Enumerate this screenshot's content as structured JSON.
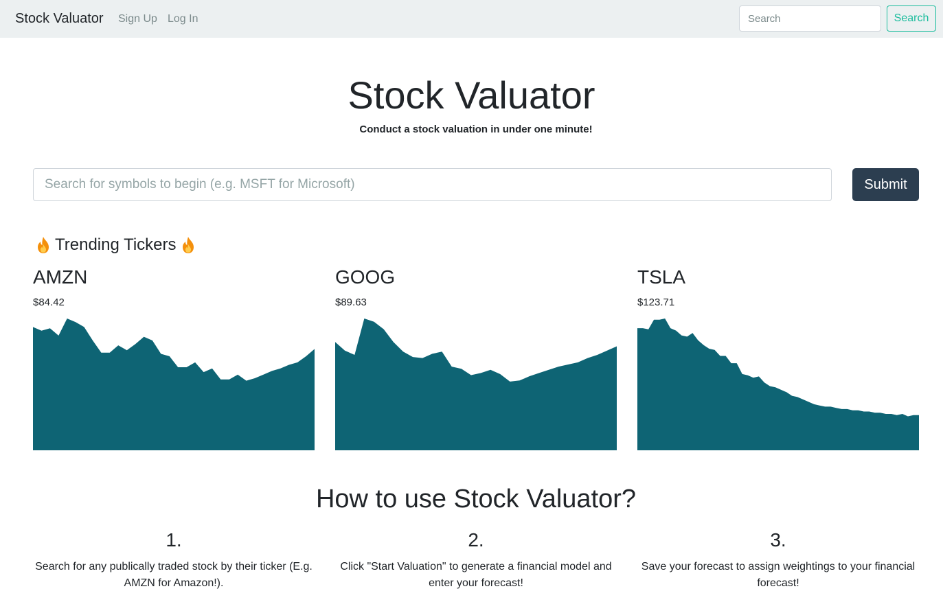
{
  "navbar": {
    "brand": "Stock Valuator",
    "links": [
      "Sign Up",
      "Log In"
    ],
    "search_placeholder": "Search",
    "search_button": "Search"
  },
  "hero": {
    "title": "Stock Valuator",
    "subtitle": "Conduct a stock valuation in under one minute!"
  },
  "main_search": {
    "placeholder": "Search for symbols to begin (e.g. MSFT for Microsoft)",
    "submit_label": "Submit"
  },
  "trending": {
    "heading": "Trending Tickers",
    "icon": "fire-icon"
  },
  "colors": {
    "chart_fill": "#0e6474",
    "accent": "#18bc9c",
    "dark": "#2c3e50"
  },
  "chart_data": [
    {
      "type": "area",
      "title": "AMZN",
      "price": "$84.42",
      "values": [
        100,
        97,
        99,
        93,
        107,
        104,
        100,
        89,
        79,
        79,
        85,
        81,
        86,
        92,
        89,
        78,
        76,
        67,
        67,
        71,
        63,
        66,
        57,
        57,
        61,
        56,
        58,
        61,
        64,
        66,
        69,
        71,
        76,
        82
      ]
    },
    {
      "type": "area",
      "title": "GOOG",
      "price": "$89.63",
      "values": [
        100,
        92,
        88,
        122,
        119,
        112,
        100,
        91,
        86,
        85,
        89,
        91,
        77,
        75,
        69,
        71,
        74,
        70,
        63,
        64,
        68,
        71,
        74,
        77,
        79,
        81,
        85,
        88,
        92,
        96
      ]
    },
    {
      "type": "area",
      "title": "TSLA",
      "price": "$123.71",
      "values": [
        100,
        100,
        99,
        107,
        107,
        108,
        100,
        98,
        94,
        93,
        96,
        90,
        86,
        83,
        82,
        77,
        77,
        71,
        71,
        62,
        61,
        59,
        60,
        55,
        52,
        51,
        49,
        47,
        44,
        43,
        41,
        39,
        37,
        36,
        35,
        35,
        34,
        33,
        33,
        32,
        32,
        31,
        31,
        30,
        30,
        29,
        29,
        28,
        29,
        27,
        28,
        28
      ]
    }
  ],
  "how_to": {
    "title": "How to use Stock Valuator?",
    "steps": [
      {
        "num": "1.",
        "text": "Search for any publically traded stock by their ticker (E.g. AMZN for Amazon!)."
      },
      {
        "num": "2.",
        "text": "Click \"Start Valuation\" to generate a financial model and enter your forecast!"
      },
      {
        "num": "3.",
        "text": "Save your forecast to assign weightings to your financial forecast!"
      }
    ]
  }
}
